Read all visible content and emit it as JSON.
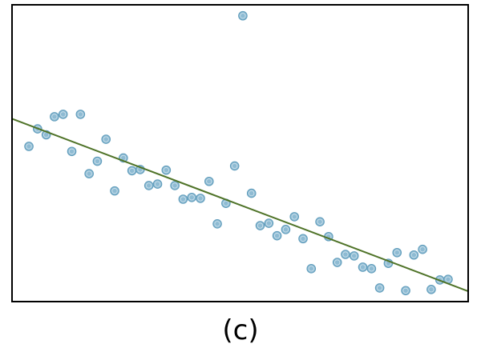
{
  "panel_label": "(c)",
  "colors": {
    "point_fill": "#8ebbd3",
    "point_stroke": "#5f9cbb",
    "fit_line": "#4f7328",
    "frame": "#000000"
  },
  "chart_data": {
    "type": "scatter",
    "title": "",
    "xlabel": "",
    "ylabel": "",
    "grid": false,
    "axes_ticks": false,
    "xlim": [
      0,
      100
    ],
    "ylim": [
      0,
      100
    ],
    "series": [
      {
        "points": [
          [
            3.7,
            52.3
          ],
          [
            5.6,
            58.2
          ],
          [
            7.5,
            56.2
          ],
          [
            9.3,
            62.3
          ],
          [
            11.2,
            63.1
          ],
          [
            13.1,
            50.6
          ],
          [
            15.0,
            63.1
          ],
          [
            16.9,
            43.1
          ],
          [
            18.7,
            47.3
          ],
          [
            20.6,
            54.7
          ],
          [
            22.5,
            37.3
          ],
          [
            24.4,
            48.4
          ],
          [
            26.3,
            44.1
          ],
          [
            28.1,
            44.5
          ],
          [
            30.0,
            39.1
          ],
          [
            31.9,
            39.6
          ],
          [
            33.8,
            44.3
          ],
          [
            35.7,
            39.1
          ],
          [
            37.5,
            34.5
          ],
          [
            39.4,
            35.1
          ],
          [
            41.3,
            34.8
          ],
          [
            43.2,
            40.5
          ],
          [
            45.0,
            26.2
          ],
          [
            46.9,
            33.1
          ],
          [
            48.8,
            45.7
          ],
          [
            50.6,
            96.3
          ],
          [
            52.5,
            36.5
          ],
          [
            54.4,
            25.6
          ],
          [
            56.3,
            26.4
          ],
          [
            58.1,
            22.2
          ],
          [
            60.0,
            24.3
          ],
          [
            61.9,
            28.6
          ],
          [
            63.8,
            21.2
          ],
          [
            65.6,
            11.1
          ],
          [
            67.5,
            26.9
          ],
          [
            69.4,
            21.9
          ],
          [
            71.3,
            13.2
          ],
          [
            73.1,
            15.9
          ],
          [
            75.0,
            15.4
          ],
          [
            76.9,
            11.6
          ],
          [
            78.8,
            11.1
          ],
          [
            80.6,
            4.6
          ],
          [
            82.5,
            12.9
          ],
          [
            84.4,
            16.5
          ],
          [
            86.3,
            3.7
          ],
          [
            88.1,
            15.7
          ],
          [
            90.0,
            17.6
          ],
          [
            91.9,
            4.1
          ],
          [
            93.8,
            7.3
          ],
          [
            95.6,
            7.5
          ]
        ]
      }
    ],
    "fit_line": {
      "x": [
        0,
        100
      ],
      "y": [
        61.6,
        3.5
      ]
    }
  }
}
